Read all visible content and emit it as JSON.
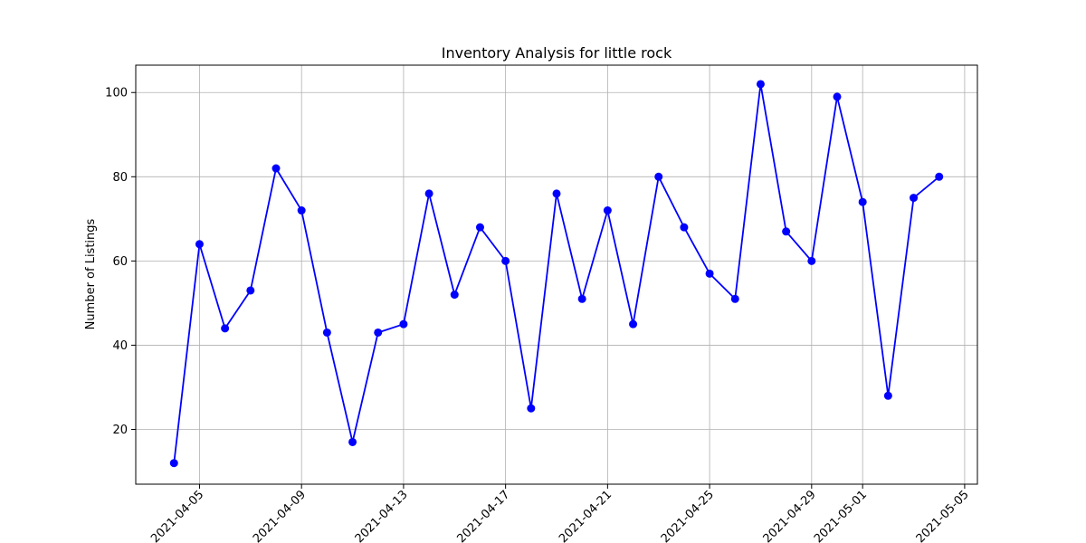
{
  "chart_data": {
    "type": "line",
    "title": "Inventory Analysis for little rock",
    "xlabel": "",
    "ylabel": "Number of Listings",
    "x_type": "date",
    "x": [
      "2021-04-04",
      "2021-04-05",
      "2021-04-06",
      "2021-04-07",
      "2021-04-08",
      "2021-04-09",
      "2021-04-10",
      "2021-04-11",
      "2021-04-12",
      "2021-04-13",
      "2021-04-14",
      "2021-04-15",
      "2021-04-16",
      "2021-04-17",
      "2021-04-18",
      "2021-04-19",
      "2021-04-20",
      "2021-04-21",
      "2021-04-22",
      "2021-04-23",
      "2021-04-24",
      "2021-04-25",
      "2021-04-26",
      "2021-04-27",
      "2021-04-28",
      "2021-04-29",
      "2021-04-30",
      "2021-05-01",
      "2021-05-02",
      "2021-05-03",
      "2021-05-04"
    ],
    "series": [
      {
        "color": "#0000ff",
        "marker": "circle",
        "values": [
          12,
          64,
          44,
          53,
          82,
          72,
          43,
          17,
          43,
          45,
          76,
          52,
          68,
          60,
          25,
          76,
          51,
          72,
          45,
          80,
          68,
          57,
          51,
          102,
          67,
          60,
          99,
          74,
          28,
          75,
          80
        ]
      }
    ],
    "xlim": [
      "2021-04-02.5",
      "2021-05-05.5"
    ],
    "ylim": [
      7,
      106.5
    ],
    "x_ticks": [
      "2021-04-05",
      "2021-04-09",
      "2021-04-13",
      "2021-04-17",
      "2021-04-21",
      "2021-04-25",
      "2021-04-29",
      "2021-05-01",
      "2021-05-05"
    ],
    "y_ticks": [
      20,
      40,
      60,
      80,
      100
    ],
    "grid": true,
    "legend": "none"
  }
}
